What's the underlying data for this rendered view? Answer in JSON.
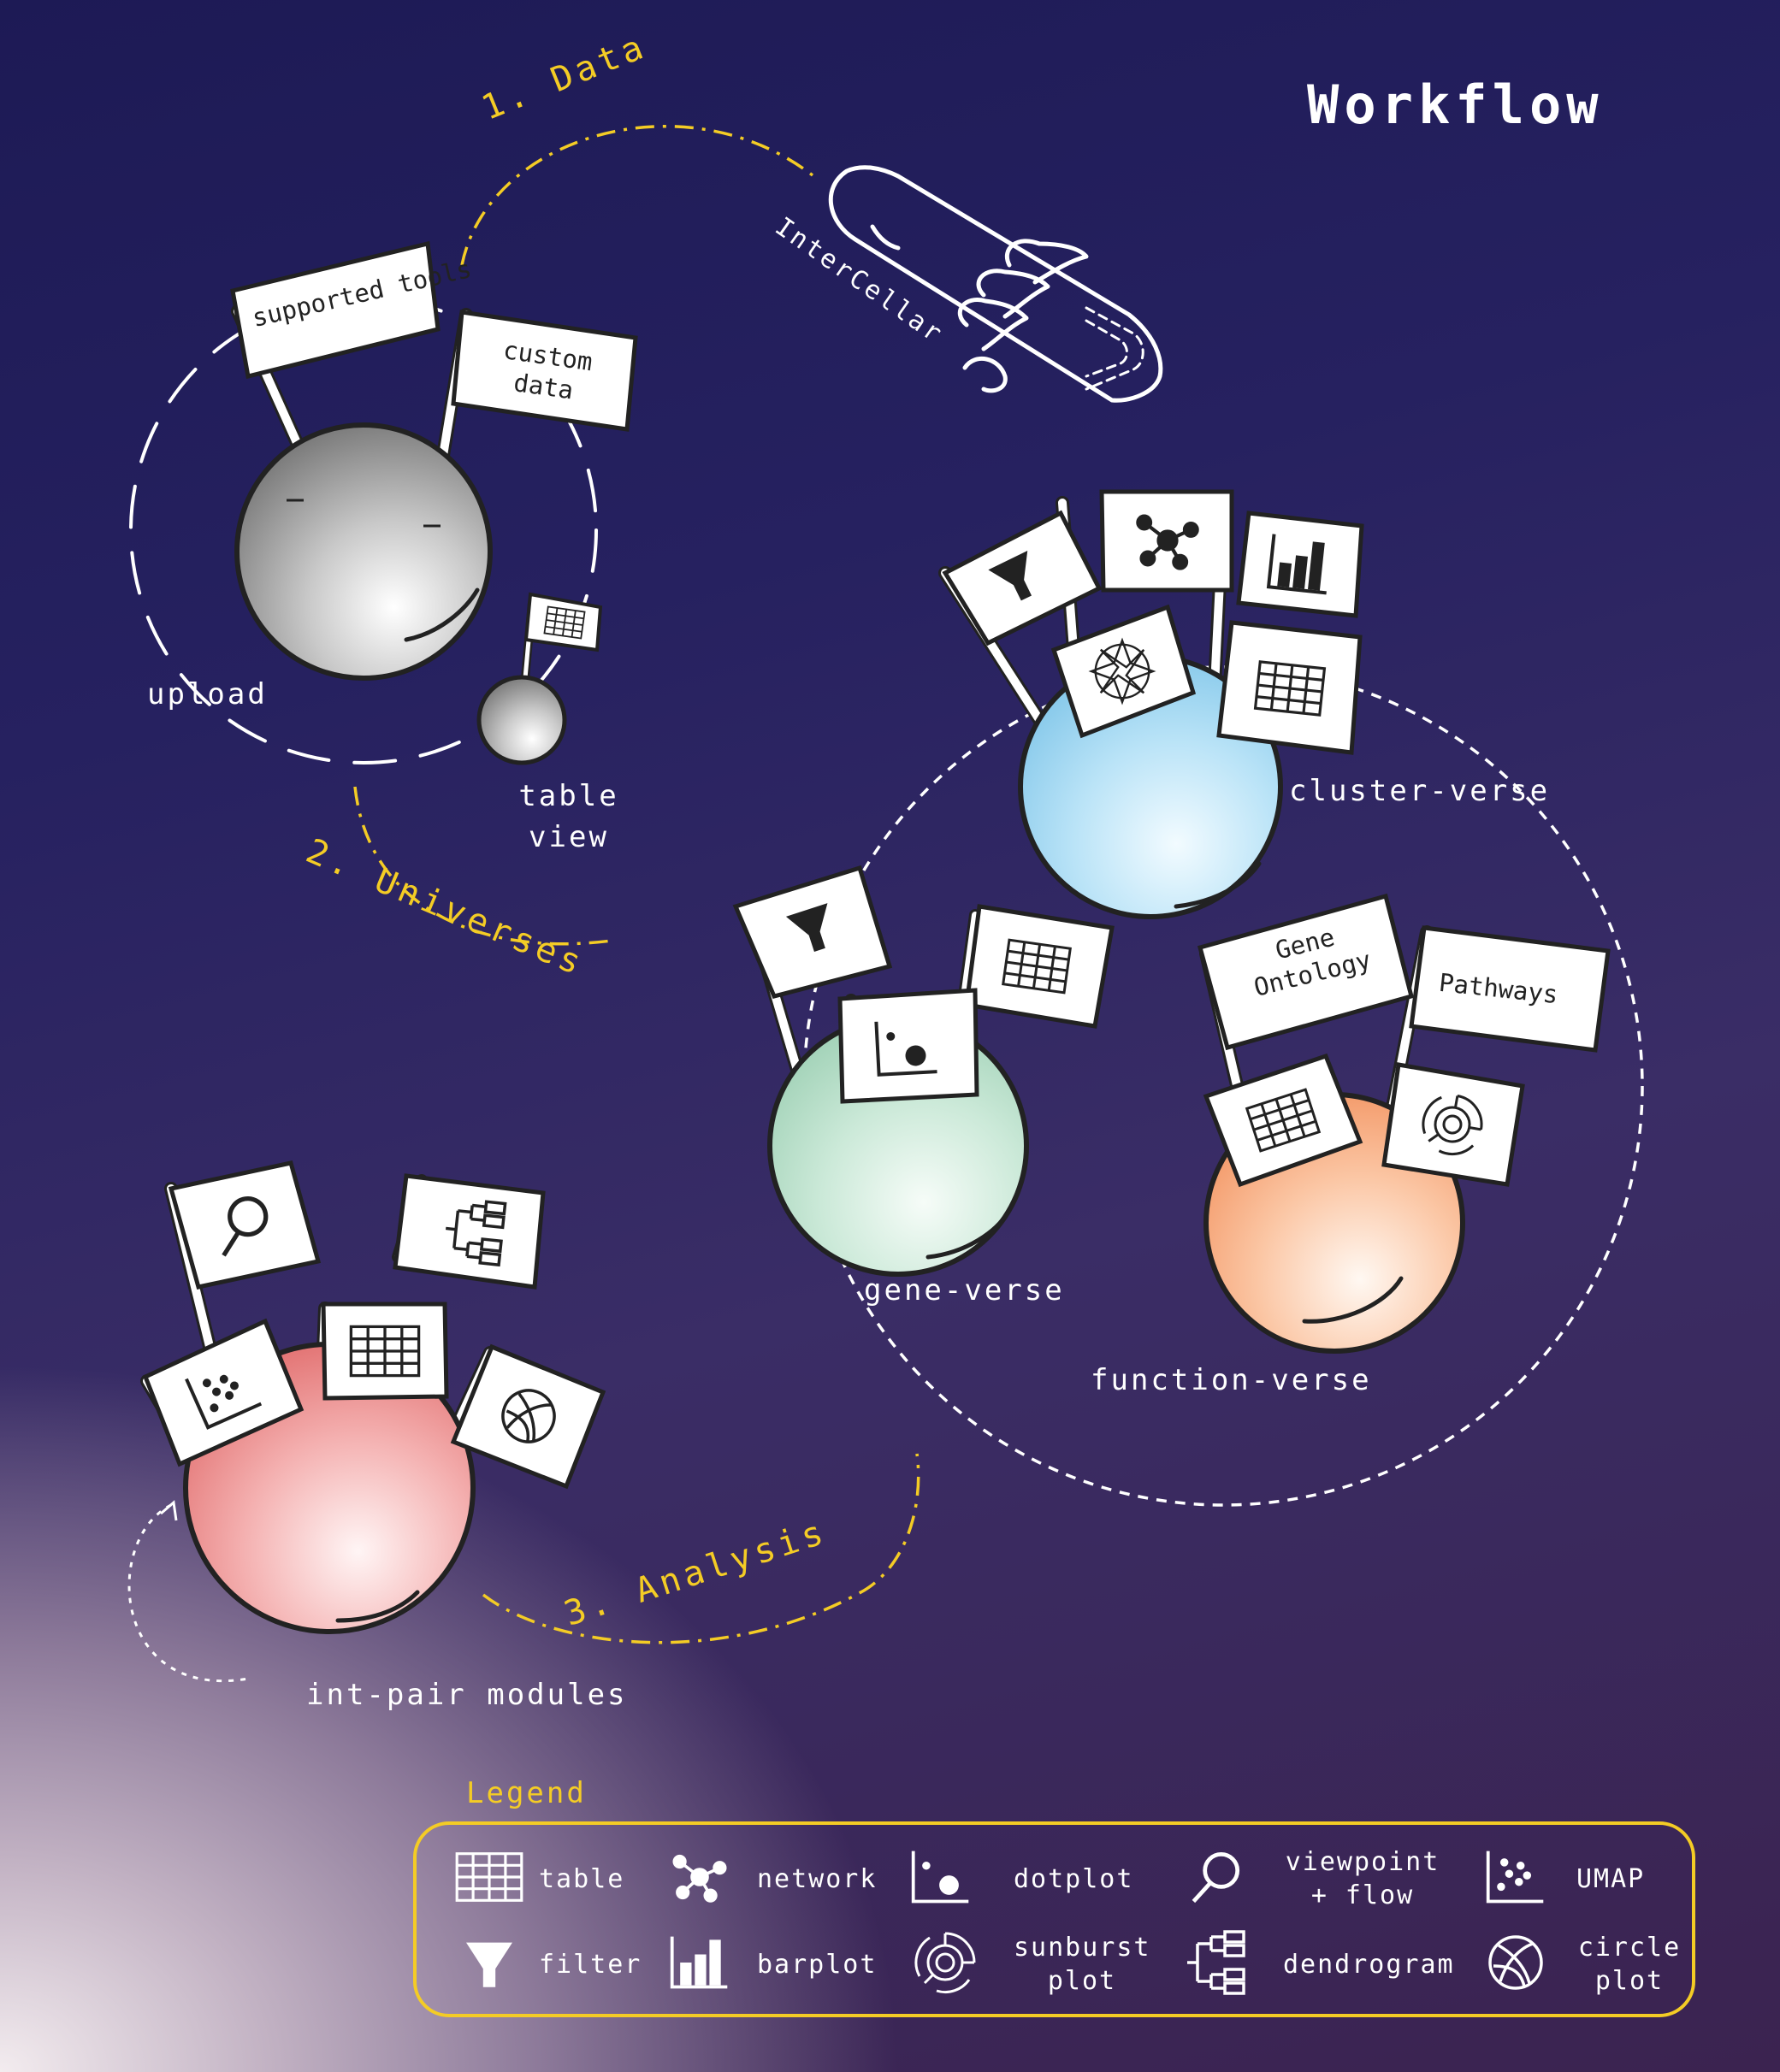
{
  "title": "Workflow",
  "steps": {
    "data": "1. Data",
    "universes": "2. Universes",
    "analysis": "3. Analysis"
  },
  "rocket_label": "InterCellar",
  "planets": {
    "upload": {
      "label": "upload",
      "flags": [
        "supported tools",
        "custom data"
      ]
    },
    "table_view": {
      "label": "table view"
    },
    "cluster_verse": {
      "label": "cluster-verse"
    },
    "gene_verse": {
      "label": "gene-verse"
    },
    "function_verse": {
      "label": "function-verse",
      "flags": [
        "Gene Ontology",
        "Pathways"
      ]
    },
    "int_pair_modules": {
      "label": "int-pair modules"
    }
  },
  "legend": {
    "title": "Legend",
    "items": [
      {
        "icon": "table-icon",
        "label": "table"
      },
      {
        "icon": "network-icon",
        "label": "network"
      },
      {
        "icon": "dotplot-icon",
        "label": "dotplot"
      },
      {
        "icon": "viewpoint-icon",
        "label": "viewpoint + flow"
      },
      {
        "icon": "umap-icon",
        "label": "UMAP"
      },
      {
        "icon": "filter-icon",
        "label": "filter"
      },
      {
        "icon": "barplot-icon",
        "label": "barplot"
      },
      {
        "icon": "sunburst-icon",
        "label": "sunburst plot"
      },
      {
        "icon": "dendrogram-icon",
        "label": "dendrogram"
      },
      {
        "icon": "circle-plot-icon",
        "label": "circle plot"
      }
    ]
  },
  "colors": {
    "accent": "#f4cc25",
    "upload_planet": "#9a9a9a",
    "cluster_planet": "#8ecfee",
    "gene_planet": "#a9d8bf",
    "function_planet": "#f5a070",
    "intpair_planet": "#e87e7e"
  }
}
